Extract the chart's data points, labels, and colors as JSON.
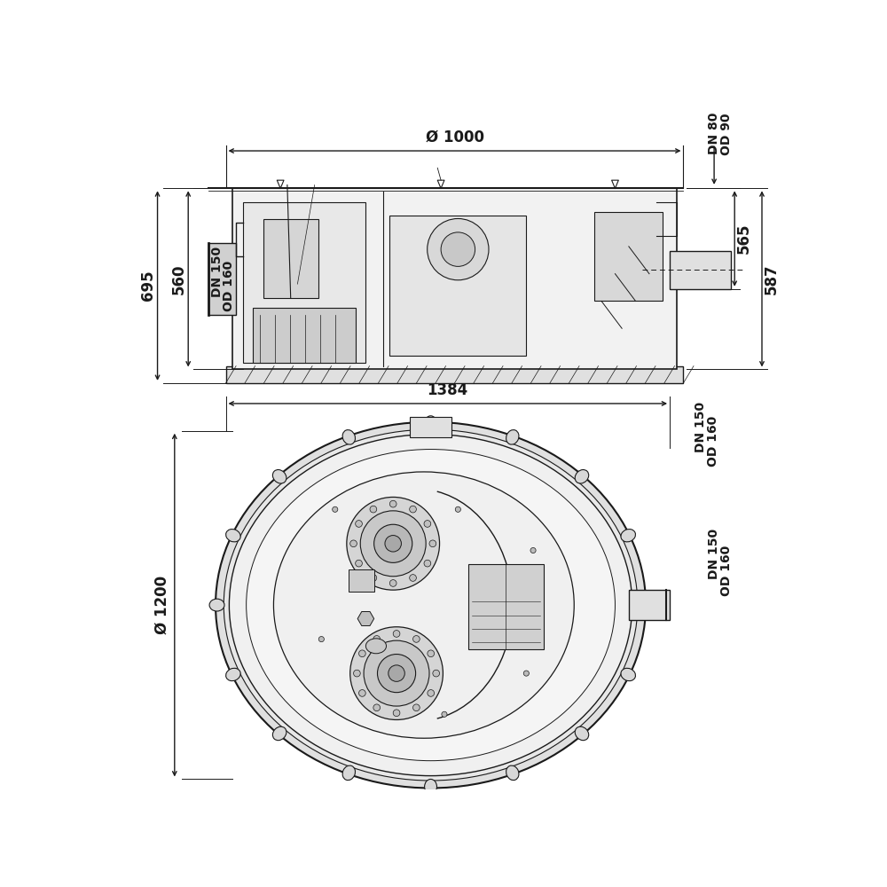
{
  "bg_color": "#ffffff",
  "lc": "#1a1a1a",
  "dc": "#1a1a1a",
  "fs": 11,
  "fs_small": 10,
  "top_view": {
    "label_phi1000": "Ø 1000",
    "label_695": "695",
    "label_560": "560",
    "label_dn150": "DN 150",
    "label_od160": "OD 160",
    "label_dn80": "DN 80",
    "label_od90": "OD 90",
    "label_565": "565",
    "label_587": "587"
  },
  "bottom_view": {
    "label_phi1200": "Ø 1200",
    "label_1384": "1384",
    "label_dn150": "DN 150",
    "label_od160": "OD 160"
  }
}
